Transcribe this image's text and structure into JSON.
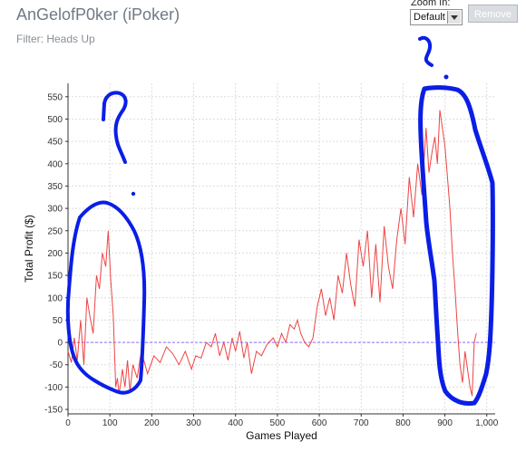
{
  "header": {
    "title": "AnGelofP0ker (iPoker)",
    "filter": "Filter: Heads Up"
  },
  "controls": {
    "zoom_label": "Zoom In:",
    "zoom_value": "Default",
    "remove_label": "Remove"
  },
  "chart_data": {
    "type": "line",
    "xlabel": "Games Played",
    "ylabel": "Total Profit ($)",
    "xlim": [
      0,
      1020
    ],
    "ylim": [
      -160,
      580
    ],
    "xticks": [
      0,
      100,
      200,
      300,
      400,
      500,
      600,
      700,
      800,
      900,
      "1,000"
    ],
    "yticks": [
      -150,
      -100,
      -50,
      0,
      50,
      100,
      150,
      200,
      250,
      300,
      350,
      400,
      450,
      500,
      550
    ],
    "grid": true,
    "series": [
      {
        "line_color": "#ee4444",
        "x": [
          0,
          8,
          15,
          22,
          30,
          38,
          45,
          52,
          60,
          68,
          75,
          82,
          90,
          96,
          102,
          108,
          114,
          118,
          122,
          126,
          130,
          136,
          142,
          148,
          155,
          165,
          175,
          190,
          205,
          220,
          235,
          250,
          265,
          280,
          295,
          305,
          318,
          330,
          342,
          352,
          362,
          372,
          382,
          392,
          400,
          410,
          420,
          428,
          438,
          450,
          462,
          475,
          490,
          500,
          510,
          520,
          530,
          540,
          548,
          556,
          565,
          575,
          585,
          595,
          605,
          615,
          625,
          635,
          645,
          655,
          665,
          675,
          685,
          695,
          705,
          715,
          725,
          735,
          745,
          755,
          765,
          775,
          785,
          795,
          805,
          815,
          825,
          835,
          845,
          855,
          862,
          870,
          876,
          882,
          888,
          894,
          900,
          906,
          912,
          918,
          924,
          930,
          936,
          942,
          948,
          954,
          960,
          965,
          970,
          975
        ],
        "y": [
          -20,
          -45,
          10,
          -40,
          50,
          -50,
          100,
          60,
          20,
          150,
          120,
          200,
          170,
          250,
          140,
          60,
          -100,
          -80,
          -115,
          -90,
          -60,
          -100,
          -40,
          -110,
          -50,
          -80,
          -20,
          -70,
          -30,
          -45,
          -10,
          -25,
          -50,
          -20,
          -60,
          -30,
          -35,
          0,
          -10,
          20,
          -30,
          0,
          -40,
          10,
          -20,
          25,
          -35,
          0,
          -70,
          -20,
          -30,
          -5,
          10,
          -10,
          20,
          0,
          40,
          30,
          50,
          20,
          0,
          -10,
          10,
          80,
          120,
          60,
          100,
          50,
          150,
          110,
          200,
          130,
          80,
          230,
          170,
          250,
          100,
          220,
          90,
          260,
          170,
          120,
          230,
          300,
          220,
          370,
          280,
          400,
          330,
          480,
          380,
          430,
          460,
          400,
          520,
          480,
          440,
          370,
          300,
          200,
          120,
          30,
          -50,
          -90,
          -20,
          -60,
          -100,
          -120,
          0,
          20
        ]
      }
    ],
    "annotations": {
      "question_marks": 2,
      "circled_regions": 2,
      "annotation_color": "#0a1ee6"
    }
  }
}
